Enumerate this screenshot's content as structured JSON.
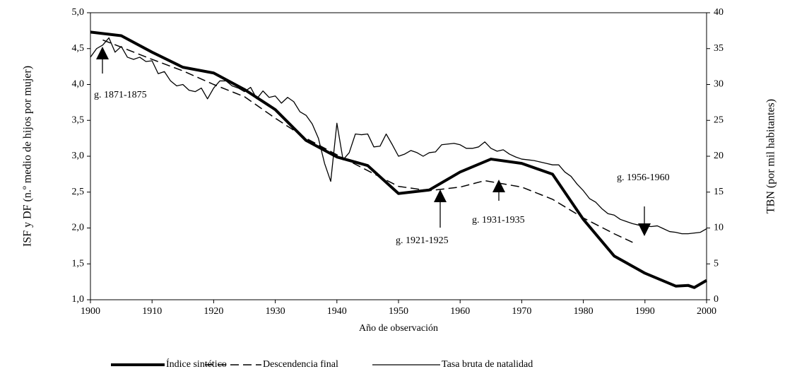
{
  "chart_data": {
    "type": "line",
    "xlabel": "Año de observación",
    "ylabel": "ISF y DF (n.º medio de hijos por mujer)",
    "y2label": "TBN (por mil habitantes)",
    "xlim": [
      1900,
      2000
    ],
    "xticks": [
      1900,
      1910,
      1920,
      1930,
      1940,
      1950,
      1960,
      1970,
      1980,
      1990,
      2000
    ],
    "ylim": [
      1,
      5
    ],
    "yticks": [
      {
        "value": 1,
        "label": "1,0"
      },
      {
        "value": 1.5,
        "label": "1,5"
      },
      {
        "value": 2,
        "label": "2,0"
      },
      {
        "value": 2.5,
        "label": "2,5"
      },
      {
        "value": 3,
        "label": "3,0"
      },
      {
        "value": 3.5,
        "label": "3,5"
      },
      {
        "value": 4,
        "label": "4,0"
      },
      {
        "value": 4.5,
        "label": "4,5"
      },
      {
        "value": 5,
        "label": "5,0"
      }
    ],
    "y2lim": [
      0,
      40
    ],
    "y2ticks": [
      0,
      5,
      10,
      15,
      20,
      25,
      30,
      35,
      40
    ],
    "legend": "bottom",
    "annotations": [
      "g. 1871-1875",
      "g. 1921-1925",
      "g. 1931-1935",
      "g. 1956-1960"
    ],
    "series": [
      {
        "name": "Índice sintético",
        "color": "#000000",
        "style": "thick",
        "x": [
          1900,
          1905,
          1910,
          1915,
          1920,
          1925,
          1930,
          1935,
          1940,
          1945,
          1950,
          1955,
          1960,
          1965,
          1970,
          1975,
          1980,
          1985,
          1990,
          1995,
          1997,
          1998,
          2000
        ],
        "values": [
          4.73,
          4.68,
          4.45,
          4.24,
          4.16,
          3.93,
          3.65,
          3.22,
          2.99,
          2.87,
          2.48,
          2.53,
          2.78,
          2.96,
          2.9,
          2.75,
          2.12,
          1.61,
          1.37,
          1.19,
          1.2,
          1.17,
          1.27
        ]
      },
      {
        "name": "Descendencia final",
        "color": "#000000",
        "style": "dashed",
        "x": [
          1902,
          1905,
          1910,
          1915,
          1920,
          1925,
          1930,
          1935,
          1940,
          1945,
          1950,
          1955,
          1960,
          1964,
          1970,
          1975,
          1980,
          1985,
          1988
        ],
        "values": [
          4.62,
          4.52,
          4.35,
          4.19,
          4.0,
          3.83,
          3.53,
          3.25,
          3.02,
          2.8,
          2.58,
          2.52,
          2.57,
          2.66,
          2.57,
          2.4,
          2.14,
          1.92,
          1.8
        ]
      },
      {
        "name": "Tasa bruta de natalidad",
        "color": "#000000",
        "style": "thin",
        "axis": "y2",
        "x": [
          1900,
          1901,
          1902,
          1903,
          1904,
          1905,
          1906,
          1907,
          1908,
          1909,
          1910,
          1911,
          1912,
          1913,
          1914,
          1915,
          1916,
          1917,
          1918,
          1919,
          1920,
          1921,
          1922,
          1923,
          1924,
          1925,
          1926,
          1927,
          1928,
          1929,
          1930,
          1931,
          1932,
          1933,
          1934,
          1935,
          1936,
          1937,
          1938,
          1939,
          1940,
          1941,
          1942,
          1943,
          1944,
          1945,
          1946,
          1947,
          1948,
          1949,
          1950,
          1951,
          1952,
          1953,
          1954,
          1955,
          1956,
          1957,
          1958,
          1959,
          1960,
          1961,
          1962,
          1963,
          1964,
          1965,
          1966,
          1967,
          1968,
          1969,
          1970,
          1971,
          1972,
          1973,
          1974,
          1975,
          1976,
          1977,
          1978,
          1979,
          1980,
          1981,
          1982,
          1983,
          1984,
          1985,
          1986,
          1987,
          1988,
          1989,
          1990,
          1991,
          1992,
          1993,
          1994,
          1995,
          1996,
          1997,
          1998,
          1999,
          2000
        ],
        "values": [
          33.8,
          35,
          35.5,
          36.5,
          34.5,
          35.3,
          33.8,
          33.5,
          33.8,
          33.2,
          33.3,
          31.5,
          31.8,
          30.5,
          29.8,
          30,
          29.2,
          29,
          29.5,
          28,
          29.5,
          30.5,
          30.5,
          29.8,
          29.5,
          29,
          29.6,
          28,
          29.1,
          28.2,
          28.4,
          27.4,
          28.2,
          27.6,
          26.2,
          25.7,
          24.5,
          22.5,
          19,
          16.5,
          24.6,
          19.5,
          20.5,
          23.1,
          23,
          23.1,
          21.3,
          21.4,
          23.1,
          21.6,
          20,
          20.3,
          20.8,
          20.5,
          20,
          20.5,
          20.6,
          21.6,
          21.7,
          21.8,
          21.6,
          21.1,
          21.1,
          21.3,
          22,
          21.1,
          20.7,
          20.9,
          20.3,
          19.9,
          19.6,
          19.5,
          19.4,
          19.2,
          19,
          18.8,
          18.8,
          17.8,
          17.2,
          16.1,
          15.2,
          14.1,
          13.6,
          12.7,
          12,
          11.8,
          11.2,
          10.9,
          10.6,
          10.4,
          10.3,
          10.2,
          10.3,
          9.9,
          9.5,
          9.4,
          9.2,
          9.2,
          9.3,
          9.4,
          9.9
        ]
      }
    ]
  }
}
